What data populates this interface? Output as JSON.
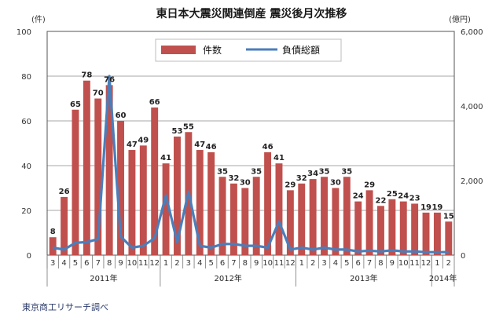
{
  "chart_data": {
    "type": "bar",
    "title": "東日本大震災関連倒産  震災後月次推移",
    "y_left_unit": "(件)",
    "y_right_unit": "(億円)",
    "y_left_ticks": [
      "0",
      "20",
      "40",
      "60",
      "80",
      "100"
    ],
    "y_right_ticks": [
      "0",
      "2,000",
      "4,000",
      "6,000"
    ],
    "ylim_left": [
      0,
      100
    ],
    "ylim_right": [
      0,
      6000
    ],
    "legend": [
      "件数",
      "負債総額"
    ],
    "legend_position": "top",
    "grid": true,
    "categories": [
      "3",
      "4",
      "5",
      "6",
      "7",
      "8",
      "9",
      "10",
      "11",
      "12",
      "1",
      "2",
      "3",
      "4",
      "5",
      "6",
      "7",
      "8",
      "9",
      "10",
      "11",
      "12",
      "1",
      "2",
      "3",
      "4",
      "5",
      "6",
      "7",
      "8",
      "9",
      "10",
      "11",
      "12",
      "1",
      "2"
    ],
    "year_labels": [
      {
        "label": "2011年",
        "start": 0,
        "end": 9
      },
      {
        "label": "2012年",
        "start": 10,
        "end": 21
      },
      {
        "label": "2013年",
        "start": 22,
        "end": 33
      },
      {
        "label": "2014年",
        "start": 34,
        "end": 35
      }
    ],
    "series": [
      {
        "name": "件数",
        "type": "bar",
        "axis": "left",
        "color": "#c0504d",
        "values": [
          8,
          26,
          65,
          78,
          70,
          76,
          60,
          47,
          49,
          66,
          41,
          53,
          55,
          47,
          46,
          35,
          32,
          30,
          35,
          46,
          41,
          29,
          32,
          34,
          35,
          30,
          35,
          24,
          29,
          22,
          25,
          24,
          23,
          19,
          19,
          15
        ]
      },
      {
        "name": "負債総額",
        "type": "line",
        "axis": "right",
        "color": "#4a7ebb",
        "values": [
          200,
          150,
          330,
          350,
          430,
          4800,
          500,
          200,
          250,
          450,
          1600,
          350,
          1700,
          250,
          200,
          300,
          300,
          250,
          250,
          200,
          900,
          150,
          200,
          150,
          200,
          150,
          150,
          100,
          120,
          100,
          130,
          100,
          100,
          80,
          80,
          80
        ]
      }
    ],
    "source": "東京商工リサーチ調べ"
  }
}
